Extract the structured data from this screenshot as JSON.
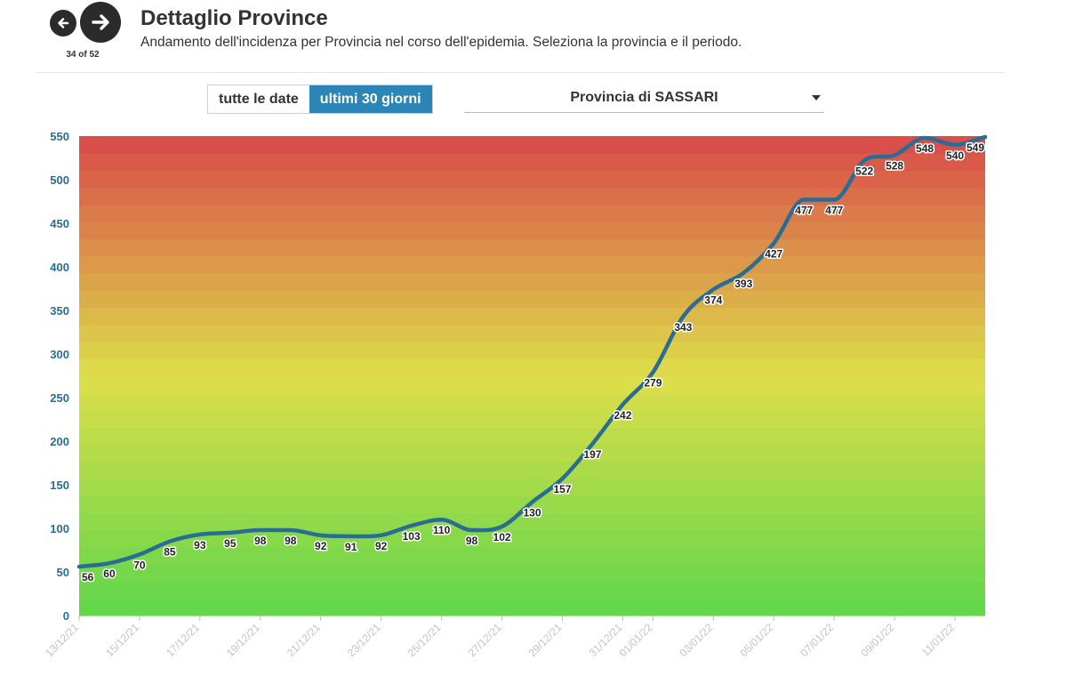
{
  "header": {
    "title": "Dettaglio Province",
    "subtitle": "Andamento dell'incidenza per Provincia nel corso dell'epidemia. Seleziona la provincia e il periodo.",
    "counter": "34 of 52",
    "prev_icon": "arrow-left-icon",
    "next_icon": "arrow-right-icon"
  },
  "controls": {
    "period_options": [
      "tutte le date",
      "ultimi 30 giorni"
    ],
    "period_selected": "ultimi 30 giorni",
    "province_selected": "Provincia di SASSARI",
    "dropdown_icon": "caret-down-icon"
  },
  "colors": {
    "accent": "#2b86b7",
    "line": "#2a6d94",
    "axis_text": "#2a6d94",
    "gradient_low": "#5ed64a",
    "gradient_mid": "#dede4a",
    "gradient_high": "#d94a4a"
  },
  "chart_data": {
    "type": "line",
    "x": [
      "13/12/21",
      "14/12/21",
      "15/12/21",
      "16/12/21",
      "17/12/21",
      "18/12/21",
      "19/12/21",
      "20/12/21",
      "21/12/21",
      "22/12/21",
      "23/12/21",
      "24/12/21",
      "25/12/21",
      "26/12/21",
      "27/12/21",
      "28/12/21",
      "29/12/21",
      "30/12/21",
      "31/12/21",
      "01/01/22",
      "02/01/22",
      "03/01/22",
      "04/01/22",
      "05/01/22",
      "06/01/22",
      "07/01/22",
      "08/01/22",
      "09/01/22",
      "10/01/22",
      "11/01/22",
      "12/01/22"
    ],
    "x_tick_labels": [
      "13/12/21",
      "15/12/21",
      "17/12/21",
      "19/12/21",
      "21/12/21",
      "23/12/21",
      "25/12/21",
      "27/12/21",
      "29/12/21",
      "31/12/21",
      "01/01/22",
      "03/01/22",
      "05/01/22",
      "07/01/22",
      "09/01/22",
      "11/01/22"
    ],
    "series": [
      {
        "values": [
          56,
          60,
          70,
          85,
          93,
          95,
          98,
          98,
          92,
          91,
          92,
          103,
          110,
          98,
          102,
          130,
          157,
          197,
          242,
          279,
          343,
          374,
          393,
          427,
          477,
          477,
          522,
          528,
          548,
          540,
          549
        ]
      }
    ],
    "ylim": [
      0,
      550
    ],
    "y_ticks": [
      0,
      50,
      100,
      150,
      200,
      250,
      300,
      350,
      400,
      450,
      500,
      550
    ],
    "background": "vertical green-yellow-red gradient by value",
    "grid": false,
    "legend": "none"
  }
}
